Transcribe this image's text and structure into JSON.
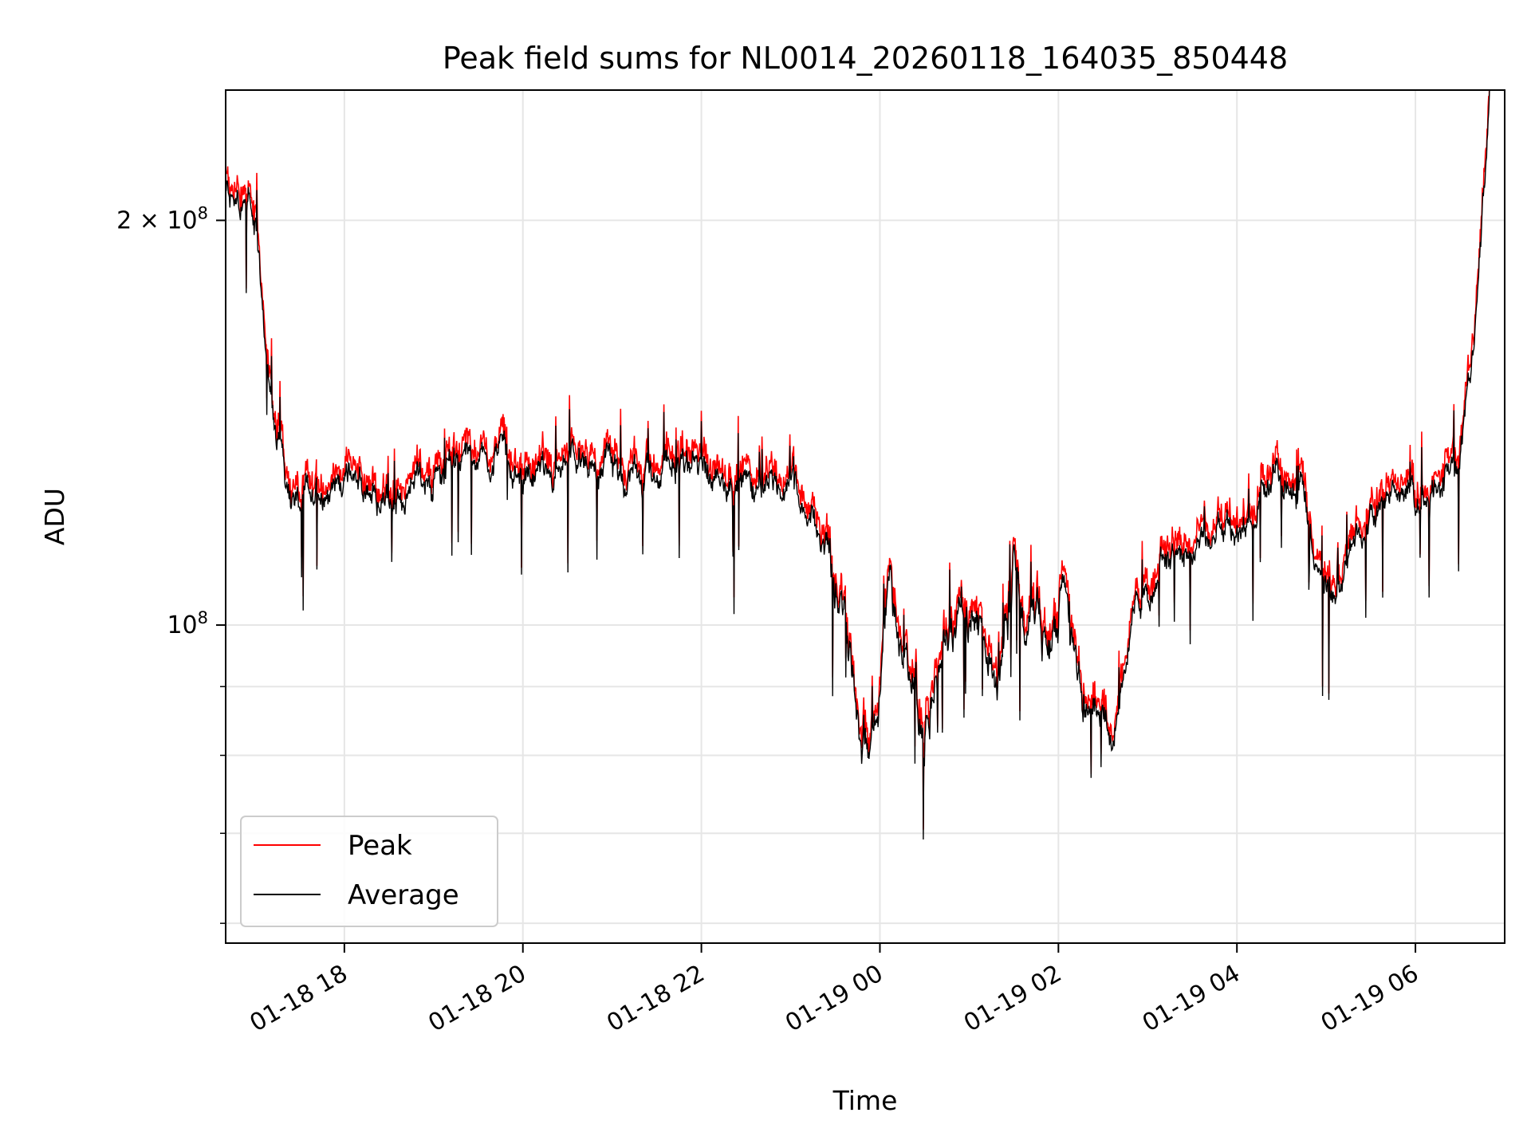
{
  "chart_data": {
    "type": "line",
    "title": "Peak field sums for NL0014_20260118_164035_850448",
    "xlabel": "Time",
    "ylabel": "ADU",
    "yscale": "log",
    "ylim": [
      58000000,
      250000000
    ],
    "xlim_hours_since_20260118_0000": [
      16.67,
      31.0
    ],
    "grid": true,
    "legend_loc": "lower left",
    "colors": {
      "peak": "#ff0000",
      "average": "#000000",
      "grid": "#e6e6e6"
    },
    "x_ticks": [
      {
        "hour": 18,
        "label": "01-18 18"
      },
      {
        "hour": 20,
        "label": "01-18 20"
      },
      {
        "hour": 22,
        "label": "01-18 22"
      },
      {
        "hour": 24,
        "label": "01-19 00"
      },
      {
        "hour": 26,
        "label": "01-19 02"
      },
      {
        "hour": 28,
        "label": "01-19 04"
      },
      {
        "hour": 30,
        "label": "01-19 06"
      }
    ],
    "y_major_ticks": [
      {
        "value": 100000000,
        "base": "10",
        "exp": "8",
        "coef": ""
      },
      {
        "value": 200000000,
        "base": "10",
        "exp": "8",
        "coef": "2 × "
      }
    ],
    "y_minor_ticks": [
      60000000,
      70000000,
      80000000,
      90000000
    ],
    "legend": [
      "Peak",
      "Average"
    ],
    "series_anchor_hours": [
      16.67,
      16.85,
      16.92,
      17.0,
      17.1,
      17.2,
      17.35,
      17.5,
      17.8,
      18.1,
      18.4,
      18.8,
      19.3,
      19.8,
      19.9,
      20.2,
      20.8,
      21.4,
      22.0,
      22.4,
      22.9,
      23.0,
      23.2,
      23.4,
      23.5,
      23.65,
      23.8,
      23.95,
      24.1,
      24.3,
      24.5,
      24.7,
      24.9,
      25.1,
      25.3,
      25.5,
      25.8,
      26.05,
      26.2,
      26.4,
      26.6,
      26.8,
      27.2,
      27.6,
      27.9,
      28.1,
      28.3,
      28.5,
      28.7,
      28.9,
      29.1,
      29.3,
      29.6,
      29.9,
      30.1,
      30.3,
      30.5,
      30.6,
      30.75,
      30.85
    ],
    "series_anchor_values": [
      210000000,
      205000000,
      210000000,
      200000000,
      165000000,
      145000000,
      130000000,
      125000000,
      127000000,
      130000000,
      122000000,
      128000000,
      132000000,
      134000000,
      128000000,
      128000000,
      131000000,
      130000000,
      131000000,
      128000000,
      127000000,
      130000000,
      120000000,
      115000000,
      108000000,
      94000000,
      80000000,
      85000000,
      108000000,
      93000000,
      84000000,
      98000000,
      106000000,
      98000000,
      90000000,
      110000000,
      96000000,
      102000000,
      91000000,
      87000000,
      82000000,
      100000000,
      113000000,
      114000000,
      117000000,
      117000000,
      130000000,
      129000000,
      126000000,
      112000000,
      107000000,
      115000000,
      124000000,
      125000000,
      123000000,
      128000000,
      134000000,
      150000000,
      200000000,
      255000000
    ],
    "series": [
      {
        "name": "Peak",
        "color": "#ff0000"
      },
      {
        "name": "Average",
        "color": "#000000"
      }
    ]
  }
}
